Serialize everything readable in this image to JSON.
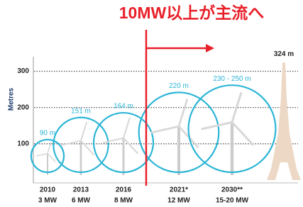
{
  "chart_data": {
    "type": "bubble",
    "title": "10MW以上が主流へ",
    "y_label": "Metres",
    "categories": [
      "2010",
      "2013",
      "2016",
      "2021*",
      "2030**"
    ],
    "sublabels": [
      "3 MW",
      "6 MW",
      "8 MW",
      "12 MW",
      "15-20 MW"
    ],
    "values": [
      90,
      151,
      164,
      220,
      240
    ],
    "value_labels": [
      "90 m",
      "151 m",
      "164 m",
      "220 m",
      "230 - 250 m"
    ],
    "color": "#2cb5d6",
    "reference": {
      "name": "324 m",
      "value": 324
    },
    "ylim": [
      0,
      340
    ],
    "yticks": [
      100,
      200,
      300
    ],
    "grid": true
  }
}
